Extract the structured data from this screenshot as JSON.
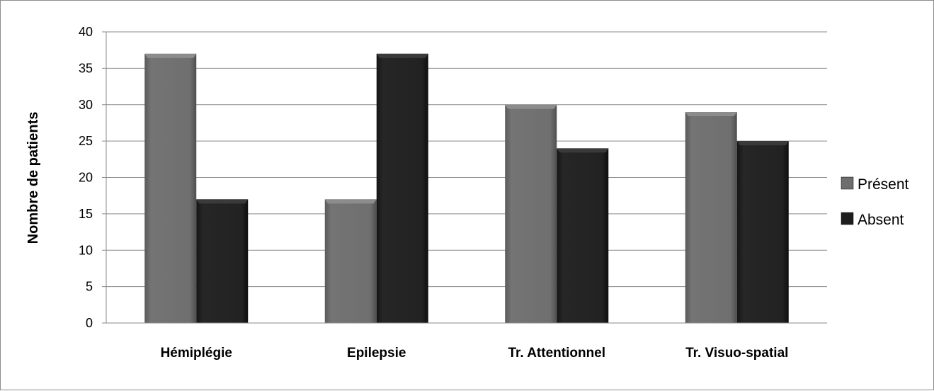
{
  "chart_data": {
    "type": "bar",
    "title": "",
    "xlabel": "",
    "ylabel": "Nombre de patients",
    "categories": [
      "Hémiplégie",
      "Epilepsie",
      "Tr. Attentionnel",
      "Tr. Visuo-spatial"
    ],
    "series": [
      {
        "name": "Présent",
        "values": [
          37,
          17,
          30,
          29
        ],
        "color": "#6e6e6e"
      },
      {
        "name": "Absent",
        "values": [
          17,
          37,
          24,
          25
        ],
        "color": "#1e1e1e"
      }
    ],
    "ylim": [
      0,
      40
    ],
    "yticks": [
      0,
      5,
      10,
      15,
      20,
      25,
      30,
      35,
      40
    ],
    "grid": true,
    "legend_position": "right"
  }
}
